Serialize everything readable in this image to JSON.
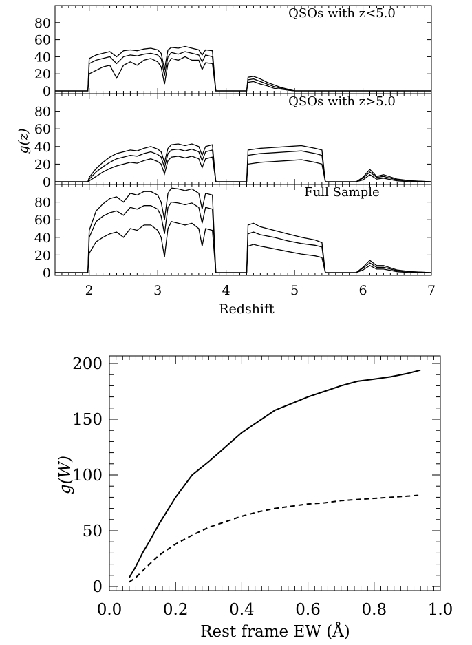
{
  "chart_data": [
    {
      "type": "line",
      "panel": "top",
      "label": "QSOs with z<5.0",
      "ylabel": "g(z)",
      "xlabel": "",
      "xlim": [
        1.5,
        7.0
      ],
      "ylim": [
        0,
        100
      ],
      "yticks": [
        0,
        20,
        40,
        60,
        80
      ],
      "x": [
        1.5,
        1.98,
        2.0,
        2.05,
        2.1,
        2.2,
        2.3,
        2.4,
        2.5,
        2.6,
        2.7,
        2.8,
        2.9,
        3.0,
        3.05,
        3.1,
        3.15,
        3.2,
        3.3,
        3.4,
        3.5,
        3.6,
        3.65,
        3.7,
        3.8,
        3.85,
        4.3,
        4.32,
        4.4,
        4.5,
        4.6,
        4.7,
        4.8,
        4.9,
        5.0,
        7.0
      ],
      "series": [
        {
          "values": [
            0,
            0,
            38,
            40,
            42,
            44,
            46,
            40,
            47,
            48,
            47,
            49,
            50,
            48,
            44,
            25,
            48,
            51,
            50,
            52,
            50,
            48,
            42,
            48,
            47,
            0,
            0,
            16,
            17,
            14,
            10,
            7,
            4,
            2,
            0,
            0
          ]
        },
        {
          "values": [
            0,
            0,
            32,
            34,
            36,
            38,
            40,
            32,
            40,
            42,
            41,
            43,
            44,
            42,
            38,
            18,
            40,
            45,
            43,
            46,
            44,
            42,
            34,
            42,
            40,
            0,
            0,
            13,
            14,
            11,
            8,
            5,
            3,
            1,
            0,
            0
          ]
        },
        {
          "values": [
            0,
            0,
            20,
            22,
            24,
            28,
            30,
            15,
            30,
            34,
            30,
            36,
            38,
            34,
            28,
            8,
            32,
            38,
            36,
            40,
            36,
            36,
            25,
            33,
            32,
            0,
            0,
            10,
            11,
            8,
            6,
            3,
            2,
            1,
            0,
            0
          ]
        }
      ]
    },
    {
      "type": "line",
      "panel": "middle",
      "label": "QSOs with z>5.0",
      "ylabel": "g(z)",
      "xlabel": "",
      "xlim": [
        1.5,
        7.0
      ],
      "ylim": [
        0,
        100
      ],
      "yticks": [
        0,
        20,
        40,
        60,
        80
      ],
      "x": [
        1.5,
        1.98,
        2.0,
        2.1,
        2.2,
        2.3,
        2.4,
        2.5,
        2.6,
        2.7,
        2.8,
        2.9,
        3.0,
        3.05,
        3.1,
        3.15,
        3.2,
        3.3,
        3.4,
        3.5,
        3.6,
        3.65,
        3.7,
        3.8,
        3.85,
        4.3,
        4.32,
        4.5,
        4.7,
        4.9,
        5.1,
        5.3,
        5.4,
        5.45,
        5.9,
        6.0,
        6.1,
        6.2,
        6.3,
        6.5,
        6.7,
        7.0
      ],
      "series": [
        {
          "values": [
            0,
            0,
            5,
            15,
            22,
            28,
            32,
            34,
            36,
            35,
            38,
            40,
            37,
            34,
            22,
            38,
            42,
            43,
            41,
            43,
            40,
            30,
            40,
            42,
            0,
            0,
            36,
            38,
            39,
            40,
            41,
            38,
            36,
            0,
            0,
            5,
            14,
            6,
            8,
            3,
            1,
            0
          ]
        },
        {
          "values": [
            0,
            0,
            3,
            11,
            17,
            22,
            26,
            28,
            30,
            29,
            32,
            34,
            31,
            28,
            16,
            32,
            36,
            37,
            35,
            37,
            34,
            24,
            34,
            36,
            0,
            0,
            30,
            32,
            33,
            34,
            35,
            32,
            30,
            0,
            0,
            4,
            11,
            5,
            6,
            2,
            1,
            0
          ]
        },
        {
          "values": [
            0,
            0,
            1,
            6,
            11,
            15,
            18,
            20,
            22,
            21,
            24,
            26,
            23,
            20,
            9,
            24,
            28,
            29,
            27,
            29,
            26,
            16,
            26,
            28,
            0,
            0,
            20,
            22,
            23,
            24,
            25,
            22,
            20,
            0,
            0,
            2,
            8,
            3,
            4,
            1,
            0,
            0
          ]
        }
      ]
    },
    {
      "type": "line",
      "panel": "bottom",
      "label": "Full Sample",
      "ylabel": "g(z)",
      "xlabel": "Redshift",
      "xlim": [
        1.5,
        7.0
      ],
      "ylim": [
        0,
        100
      ],
      "yticks": [
        0,
        20,
        40,
        60,
        80
      ],
      "xticks": [
        2,
        3,
        4,
        5,
        6,
        7
      ],
      "x": [
        1.5,
        1.98,
        2.0,
        2.1,
        2.2,
        2.3,
        2.4,
        2.5,
        2.6,
        2.7,
        2.8,
        2.9,
        3.0,
        3.05,
        3.1,
        3.15,
        3.2,
        3.3,
        3.4,
        3.5,
        3.6,
        3.65,
        3.7,
        3.8,
        3.85,
        4.3,
        4.32,
        4.4,
        4.5,
        4.7,
        4.9,
        5.1,
        5.3,
        5.4,
        5.45,
        5.9,
        6.0,
        6.1,
        6.2,
        6.3,
        6.5,
        6.7,
        7.0
      ],
      "series": [
        {
          "values": [
            0,
            0,
            48,
            70,
            78,
            84,
            86,
            80,
            90,
            88,
            92,
            92,
            88,
            80,
            60,
            90,
            96,
            95,
            93,
            95,
            90,
            72,
            90,
            88,
            0,
            0,
            54,
            56,
            52,
            48,
            44,
            40,
            37,
            34,
            0,
            0,
            6,
            14,
            8,
            8,
            3,
            1,
            0
          ]
        },
        {
          "values": [
            0,
            0,
            40,
            58,
            64,
            68,
            70,
            65,
            74,
            72,
            76,
            76,
            72,
            64,
            44,
            74,
            80,
            79,
            77,
            79,
            74,
            56,
            74,
            72,
            0,
            0,
            44,
            46,
            43,
            40,
            36,
            33,
            31,
            29,
            0,
            0,
            5,
            11,
            6,
            6,
            2,
            1,
            0
          ]
        },
        {
          "values": [
            0,
            0,
            22,
            35,
            40,
            44,
            46,
            40,
            50,
            48,
            54,
            54,
            48,
            40,
            18,
            50,
            58,
            56,
            54,
            56,
            50,
            30,
            50,
            48,
            0,
            0,
            30,
            32,
            30,
            27,
            24,
            21,
            19,
            17,
            0,
            0,
            3,
            8,
            4,
            4,
            1,
            0,
            0
          ]
        }
      ]
    },
    {
      "type": "line",
      "panel": "lower",
      "title": "",
      "xlabel": "Rest frame EW (Å)",
      "ylabel": "g(W)",
      "xlim": [
        0.0,
        1.0
      ],
      "ylim": [
        0,
        200
      ],
      "xticks": [
        "0.0",
        "0.2",
        "0.4",
        "0.6",
        "0.8",
        "1.0"
      ],
      "yticks": [
        "0",
        "50",
        "100",
        "150",
        "200"
      ],
      "series": [
        {
          "style": "solid",
          "x": [
            0.06,
            0.08,
            0.1,
            0.12,
            0.15,
            0.2,
            0.25,
            0.3,
            0.35,
            0.4,
            0.45,
            0.5,
            0.55,
            0.6,
            0.65,
            0.7,
            0.75,
            0.8,
            0.85,
            0.9,
            0.94
          ],
          "values": [
            8,
            18,
            30,
            40,
            56,
            80,
            100,
            112,
            125,
            138,
            148,
            158,
            164,
            170,
            175,
            180,
            184,
            186,
            188,
            191,
            194
          ]
        },
        {
          "style": "dashed",
          "x": [
            0.06,
            0.08,
            0.1,
            0.15,
            0.2,
            0.25,
            0.3,
            0.35,
            0.4,
            0.45,
            0.5,
            0.55,
            0.6,
            0.65,
            0.7,
            0.75,
            0.8,
            0.85,
            0.9,
            0.94
          ],
          "values": [
            4,
            8,
            14,
            28,
            38,
            46,
            53,
            58,
            63,
            67,
            70,
            72,
            74,
            75,
            77,
            78,
            79,
            80,
            81,
            82
          ]
        }
      ]
    }
  ]
}
